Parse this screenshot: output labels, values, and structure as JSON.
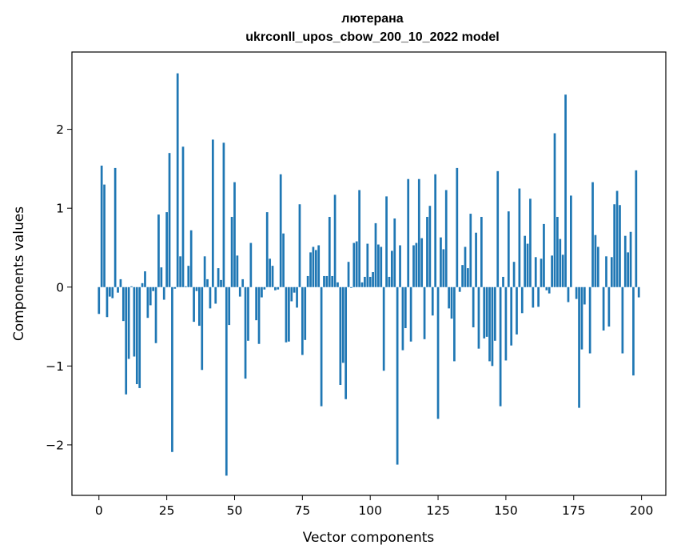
{
  "chart_data": {
    "type": "bar",
    "title": "лютерана",
    "subtitle": "ukrconll_upos_cbow_200_10_2022 model",
    "xlabel": "Vector components",
    "ylabel": "Components values",
    "xlim": [
      -9.95,
      208.95
    ],
    "ylim": [
      -2.64,
      2.98
    ],
    "xticks": [
      0,
      25,
      50,
      75,
      100,
      125,
      150,
      175,
      200
    ],
    "xtick_labels": [
      "0",
      "25",
      "50",
      "75",
      "100",
      "125",
      "150",
      "175",
      "200"
    ],
    "yticks": [
      -2,
      -1,
      0,
      1,
      2
    ],
    "ytick_labels": [
      "−2",
      "−1",
      "0",
      "1",
      "2"
    ],
    "bar_color": "#1f77b4",
    "grid": false,
    "legend": "none",
    "values": [
      -0.34,
      1.54,
      1.3,
      -0.38,
      -0.12,
      -0.14,
      1.51,
      -0.07,
      0.1,
      -0.43,
      -1.36,
      -0.91,
      0.01,
      -0.88,
      -1.23,
      -1.28,
      0.05,
      0.2,
      -0.39,
      -0.23,
      -0.05,
      -0.71,
      0.92,
      0.25,
      -0.16,
      0.95,
      1.7,
      -2.09,
      -0.02,
      2.71,
      0.39,
      1.78,
      0.01,
      0.27,
      0.72,
      -0.44,
      -0.05,
      -0.49,
      -1.05,
      0.39,
      0.1,
      -0.27,
      1.87,
      -0.21,
      0.24,
      0.09,
      1.83,
      -2.39,
      -0.48,
      0.89,
      1.33,
      0.4,
      -0.12,
      0.1,
      -1.16,
      -0.68,
      0.56,
      0.0,
      -0.42,
      -0.72,
      -0.13,
      -0.03,
      0.95,
      0.36,
      0.27,
      -0.04,
      -0.03,
      1.43,
      0.68,
      -0.7,
      -0.69,
      -0.18,
      -0.07,
      -0.26,
      1.05,
      -0.86,
      -0.67,
      0.14,
      0.44,
      0.51,
      0.47,
      0.53,
      -1.51,
      0.14,
      0.14,
      0.89,
      0.14,
      1.17,
      0.06,
      -1.24,
      -0.96,
      -1.42,
      0.32,
      -0.01,
      0.56,
      0.58,
      1.23,
      0.06,
      0.13,
      0.55,
      0.13,
      0.19,
      0.81,
      0.54,
      0.51,
      -1.06,
      1.15,
      0.13,
      0.46,
      0.87,
      -2.25,
      0.53,
      -0.8,
      -0.52,
      1.37,
      -0.69,
      0.53,
      0.56,
      1.37,
      0.62,
      -0.66,
      0.89,
      1.03,
      -0.36,
      1.43,
      -1.67,
      0.63,
      0.48,
      1.23,
      -0.27,
      -0.4,
      -0.94,
      1.51,
      -0.06,
      0.28,
      0.51,
      0.24,
      0.93,
      -0.51,
      0.69,
      -0.78,
      0.89,
      -0.65,
      -0.63,
      -0.94,
      -1.0,
      -0.68,
      1.47,
      -1.51,
      0.13,
      -0.93,
      0.96,
      -0.74,
      0.32,
      -0.6,
      1.25,
      -0.33,
      0.65,
      0.55,
      1.12,
      -0.26,
      0.38,
      -0.25,
      0.36,
      0.8,
      -0.04,
      -0.08,
      0.4,
      1.95,
      0.89,
      0.61,
      0.41,
      2.44,
      -0.19,
      1.16,
      0.0,
      -0.15,
      -1.53,
      -0.79,
      -0.22,
      0.0,
      -0.84,
      1.33,
      0.66,
      0.51,
      0.0,
      -0.55,
      0.39,
      -0.5,
      0.38,
      1.05,
      1.22,
      1.04,
      -0.84,
      0.65,
      0.44,
      0.7,
      -1.12,
      1.48,
      -0.13
    ]
  }
}
